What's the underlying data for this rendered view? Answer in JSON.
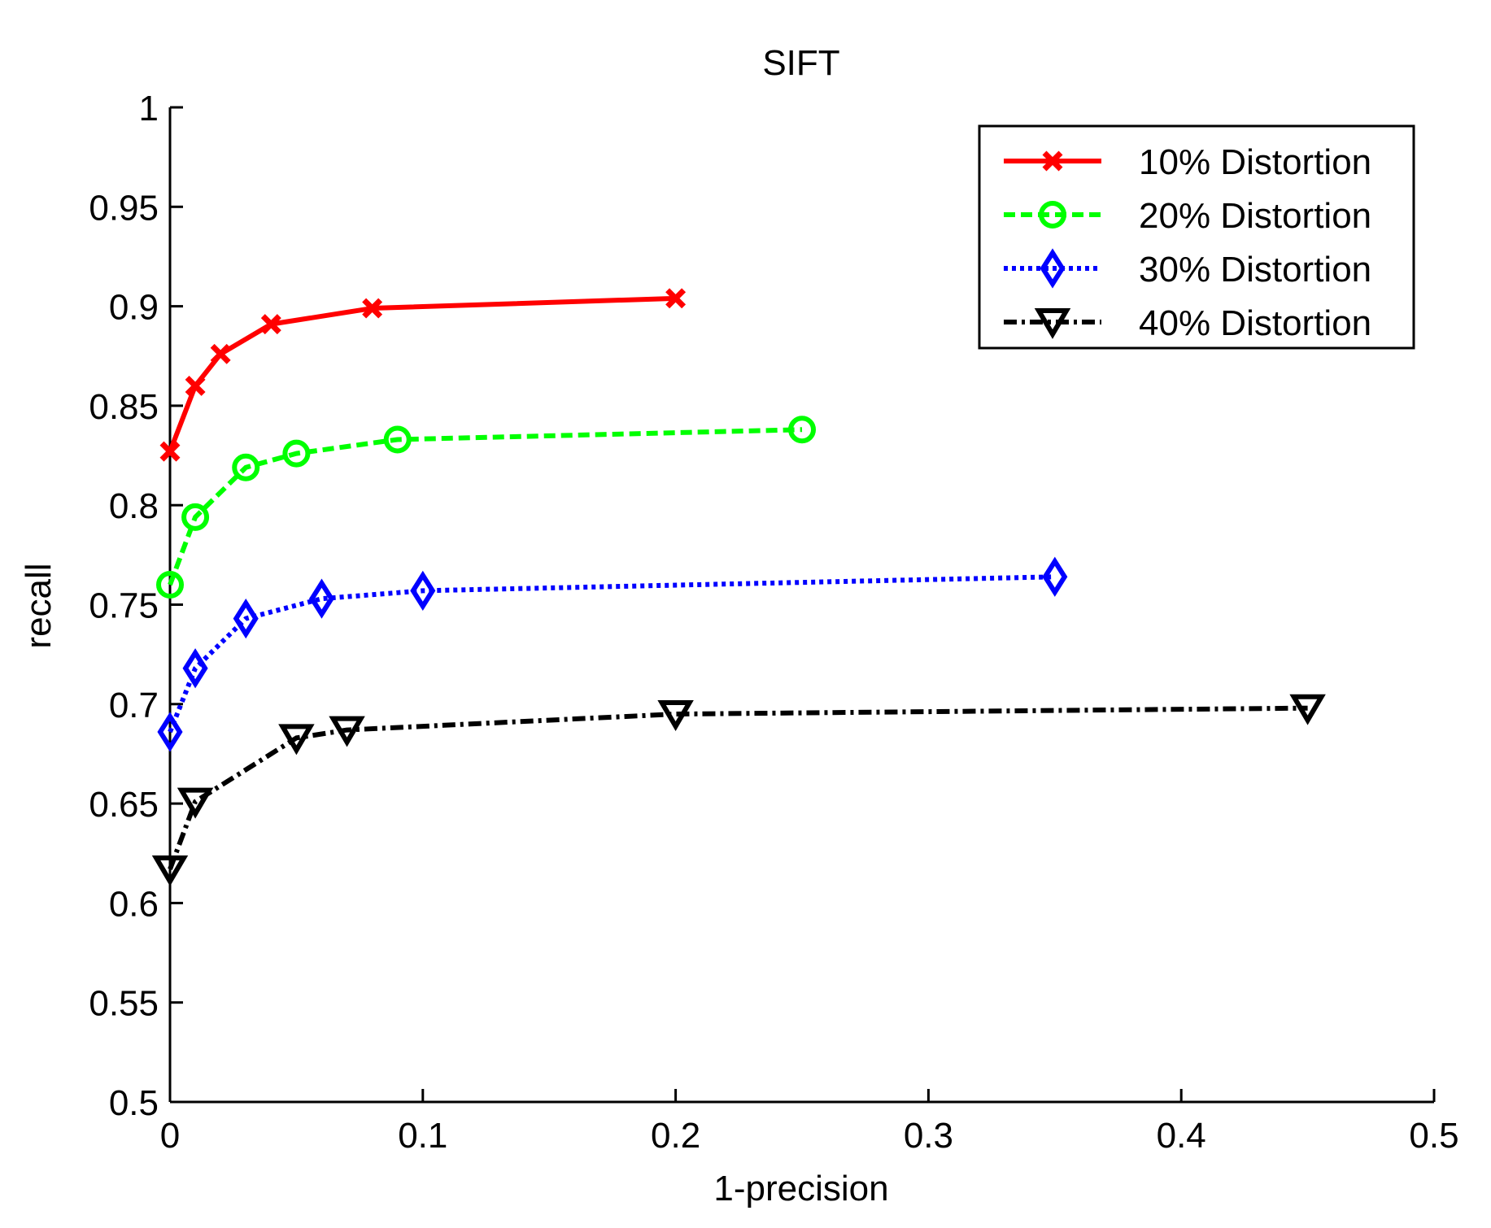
{
  "chart_data": {
    "type": "line",
    "title": "SIFT",
    "xlabel": "1-precision",
    "ylabel": "recall",
    "xlim": [
      0,
      0.5
    ],
    "ylim": [
      0.5,
      1
    ],
    "xticks": [
      0,
      0.1,
      0.2,
      0.3,
      0.4,
      0.5
    ],
    "xtick_labels": [
      "0",
      "0.1",
      "0.2",
      "0.3",
      "0.4",
      "0.5"
    ],
    "yticks": [
      0.5,
      0.55,
      0.6,
      0.65,
      0.7,
      0.75,
      0.8,
      0.85,
      0.9,
      0.95,
      1
    ],
    "ytick_labels": [
      "0.5",
      "0.55",
      "0.6",
      "0.65",
      "0.7",
      "0.75",
      "0.8",
      "0.85",
      "0.9",
      "0.95",
      "1"
    ],
    "grid": false,
    "legend_position": "top-right",
    "series": [
      {
        "name": "10% Distortion",
        "color": "#ff0000",
        "line_style": "solid",
        "marker": "x",
        "x": [
          0,
          0.01,
          0.02,
          0.04,
          0.08,
          0.2
        ],
        "y": [
          0.827,
          0.86,
          0.876,
          0.891,
          0.899,
          0.904
        ]
      },
      {
        "name": "20% Distortion",
        "color": "#00ff00",
        "line_style": "dashed",
        "marker": "o",
        "x": [
          0,
          0.01,
          0.03,
          0.05,
          0.09,
          0.25
        ],
        "y": [
          0.76,
          0.794,
          0.819,
          0.826,
          0.833,
          0.838
        ]
      },
      {
        "name": "30% Distortion",
        "color": "#0000ff",
        "line_style": "dotted",
        "marker": "diamond",
        "x": [
          0,
          0.01,
          0.03,
          0.06,
          0.1,
          0.35
        ],
        "y": [
          0.686,
          0.718,
          0.743,
          0.753,
          0.757,
          0.764
        ]
      },
      {
        "name": "40% Distortion",
        "color": "#000000",
        "line_style": "dashdot",
        "marker": "triangle-down",
        "x": [
          0,
          0.01,
          0.05,
          0.07,
          0.2,
          0.45
        ],
        "y": [
          0.617,
          0.651,
          0.683,
          0.687,
          0.695,
          0.698
        ]
      }
    ]
  }
}
